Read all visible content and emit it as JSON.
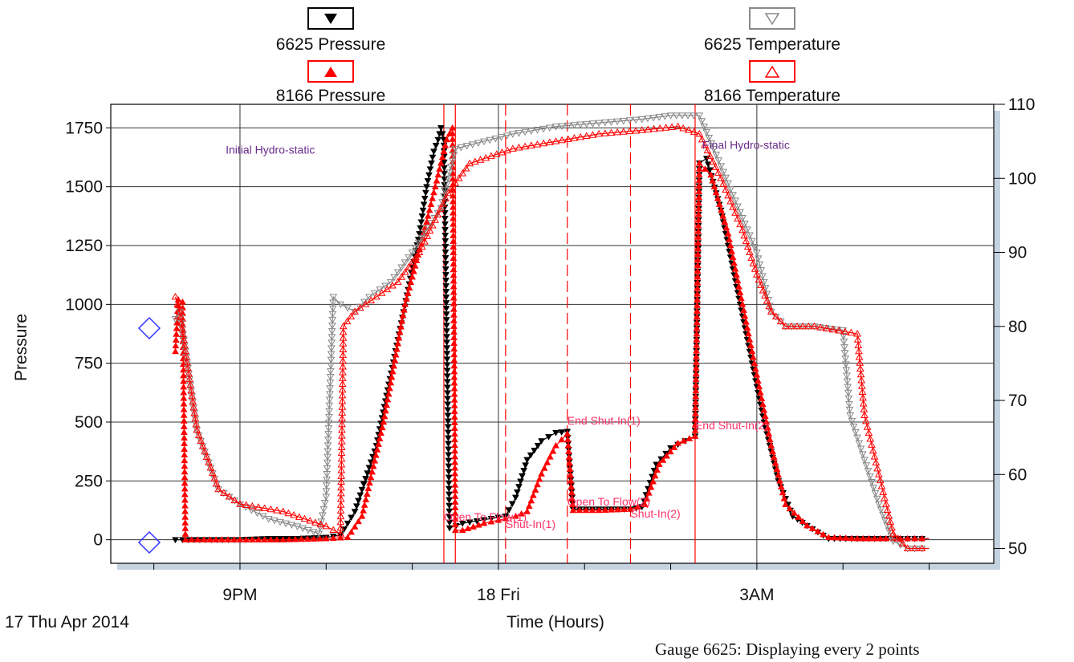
{
  "legend": [
    {
      "key": "p6625",
      "label": "6625 Pressure",
      "color": "#000000",
      "marker": "triangle-down-filled"
    },
    {
      "key": "p8166",
      "label": "8166 Pressure",
      "color": "#ff0000",
      "marker": "triangle-up-filled"
    },
    {
      "key": "t6625",
      "label": "6625 Temperature",
      "color": "#888888",
      "marker": "triangle-down-open"
    },
    {
      "key": "t8166",
      "label": "8166 Temperature",
      "color": "#ff0000",
      "marker": "triangle-up-open"
    }
  ],
  "footer_note": "Gauge 6625: Displaying every 2 points",
  "date_label": "17 Thu Apr 2014",
  "chart_data": {
    "type": "line",
    "xlabel": "Time (Hours)",
    "ylabel": "Pressure",
    "xlim": [
      "2014-04-17 19:30",
      "2014-04-18 05:45"
    ],
    "ylim": [
      -100,
      1850
    ],
    "y2lim": [
      48,
      110
    ],
    "grid": true,
    "x_ticks": [
      {
        "t": "2014-04-17 21:00",
        "label": "9PM"
      },
      {
        "t": "2014-04-18 00:00",
        "label": "18 Fri"
      },
      {
        "t": "2014-04-18 03:00",
        "label": "3AM"
      }
    ],
    "y_ticks": [
      0,
      250,
      500,
      750,
      1000,
      1250,
      1500,
      1750
    ],
    "y2_ticks": [
      50,
      60,
      70,
      80,
      90,
      100,
      110
    ],
    "events": [
      {
        "t": "2014-04-17 23:22",
        "style": "solid",
        "label": "Initial Hydro-static"
      },
      {
        "t": "2014-04-17 23:30",
        "style": "solid",
        "label": ""
      },
      {
        "t": "2014-04-18 00:05",
        "style": "dashed",
        "label": ""
      },
      {
        "t": "2014-04-18 00:48",
        "style": "dashed",
        "label": ""
      },
      {
        "t": "2014-04-18 01:32",
        "style": "dashed",
        "label": ""
      },
      {
        "t": "2014-04-18 02:17",
        "style": "solid",
        "label": ""
      }
    ],
    "annotations": [
      {
        "text": "Initial Hydro-static",
        "t": "2014-04-17 20:50",
        "y": 1640,
        "color": "#6a2c8c"
      },
      {
        "text": "Final Hydro-static",
        "t": "2014-04-18 02:22",
        "y": 1660,
        "color": "#6a2c8c"
      },
      {
        "text": "End Shut-In(1)",
        "t": "2014-04-18 00:48",
        "y": 490,
        "color": "#ff3366"
      },
      {
        "text": "End Shut-In(2)",
        "t": "2014-04-18 02:17",
        "y": 470,
        "color": "#ff3366"
      },
      {
        "text": "Open To Flow(1)",
        "t": "2014-04-17 23:22",
        "y": 80,
        "color": "#ff3366"
      },
      {
        "text": "Shut-In(1)",
        "t": "2014-04-18 00:05",
        "y": 50,
        "color": "#ff3366"
      },
      {
        "text": "Open To Flow(2)",
        "t": "2014-04-18 00:48",
        "y": 145,
        "color": "#ff3366"
      },
      {
        "text": "Shut-In(2)",
        "t": "2014-04-18 01:32",
        "y": 95,
        "color": "#ff3366"
      }
    ],
    "series": [
      {
        "name": "6625 Pressure",
        "axis": "left",
        "color": "#000000",
        "marker": "down-filled",
        "x": [
          "2014-04-17 20:15",
          "2014-04-17 20:20",
          "2014-04-17 20:40",
          "2014-04-17 21:00",
          "2014-04-17 21:20",
          "2014-04-17 21:40",
          "2014-04-17 22:00",
          "2014-04-17 22:10",
          "2014-04-17 22:20",
          "2014-04-17 22:35",
          "2014-04-17 22:50",
          "2014-04-17 23:05",
          "2014-04-17 23:10",
          "2014-04-17 23:15",
          "2014-04-17 23:18",
          "2014-04-17 23:20",
          "2014-04-17 23:22",
          "2014-04-17 23:26",
          "2014-04-17 23:35",
          "2014-04-17 23:50",
          "2014-04-18 00:05",
          "2014-04-18 00:12",
          "2014-04-18 00:20",
          "2014-04-18 00:30",
          "2014-04-18 00:40",
          "2014-04-18 00:48",
          "2014-04-18 00:52",
          "2014-04-18 01:10",
          "2014-04-18 01:32",
          "2014-04-18 01:40",
          "2014-04-18 01:50",
          "2014-04-18 02:00",
          "2014-04-18 02:10",
          "2014-04-18 02:17",
          "2014-04-18 02:20",
          "2014-04-18 02:25",
          "2014-04-18 02:35",
          "2014-04-18 02:45",
          "2014-04-18 02:55",
          "2014-04-18 03:05",
          "2014-04-18 03:15",
          "2014-04-18 03:25",
          "2014-04-18 03:35",
          "2014-04-18 03:50",
          "2014-04-18 04:10",
          "2014-04-18 04:30",
          "2014-04-18 04:45",
          "2014-04-18 05:00"
        ],
        "y": [
          0,
          0,
          0,
          0,
          5,
          5,
          10,
          20,
          120,
          400,
          850,
          1300,
          1500,
          1650,
          1700,
          1750,
          1700,
          50,
          70,
          85,
          100,
          180,
          340,
          420,
          455,
          460,
          130,
          130,
          130,
          140,
          320,
          390,
          420,
          440,
          1600,
          1620,
          1400,
          1100,
          800,
          500,
          250,
          100,
          60,
          5,
          5,
          5,
          5,
          5
        ]
      },
      {
        "name": "8166 Pressure",
        "axis": "left",
        "color": "#ff0000",
        "marker": "up-filled",
        "x": [
          "2014-04-17 20:15",
          "2014-04-17 20:17",
          "2014-04-17 20:20",
          "2014-04-17 20:22",
          "2014-04-17 20:35",
          "2014-04-17 21:00",
          "2014-04-17 21:30",
          "2014-04-17 22:00",
          "2014-04-17 22:15",
          "2014-04-17 22:25",
          "2014-04-17 22:40",
          "2014-04-17 22:55",
          "2014-04-17 23:10",
          "2014-04-17 23:20",
          "2014-04-17 23:24",
          "2014-04-17 23:28",
          "2014-04-17 23:30",
          "2014-04-17 23:35",
          "2014-04-17 23:50",
          "2014-04-18 00:05",
          "2014-04-18 00:12",
          "2014-04-18 00:20",
          "2014-04-18 00:30",
          "2014-04-18 00:40",
          "2014-04-18 00:48",
          "2014-04-18 00:52",
          "2014-04-18 01:10",
          "2014-04-18 01:32",
          "2014-04-18 01:42",
          "2014-04-18 01:52",
          "2014-04-18 02:05",
          "2014-04-18 02:17",
          "2014-04-18 02:20",
          "2014-04-18 02:28",
          "2014-04-18 02:40",
          "2014-04-18 02:50",
          "2014-04-18 03:00",
          "2014-04-18 03:10",
          "2014-04-18 03:20",
          "2014-04-18 03:35",
          "2014-04-18 03:50",
          "2014-04-18 04:10",
          "2014-04-18 04:30",
          "2014-04-18 04:45",
          "2014-04-18 05:00"
        ],
        "y": [
          800,
          1020,
          1010,
          0,
          0,
          0,
          0,
          5,
          10,
          100,
          500,
          1000,
          1350,
          1600,
          1700,
          1750,
          40,
          40,
          70,
          90,
          100,
          120,
          280,
          400,
          450,
          125,
          125,
          130,
          150,
          320,
          410,
          440,
          1600,
          1550,
          1300,
          1000,
          700,
          400,
          150,
          60,
          10,
          5,
          5,
          5,
          5
        ]
      },
      {
        "name": "6625 Temperature",
        "axis": "right",
        "color": "#888888",
        "marker": "down-open",
        "x": [
          "2014-04-17 20:15",
          "2014-04-17 20:18",
          "2014-04-17 20:30",
          "2014-04-17 20:45",
          "2014-04-17 21:00",
          "2014-04-17 21:20",
          "2014-04-17 21:40",
          "2014-04-17 21:55",
          "2014-04-17 22:00",
          "2014-04-17 22:05",
          "2014-04-17 22:10",
          "2014-04-17 22:20",
          "2014-04-17 22:30",
          "2014-04-17 22:45",
          "2014-04-17 23:00",
          "2014-04-17 23:20",
          "2014-04-17 23:30",
          "2014-04-17 23:50",
          "2014-04-18 00:10",
          "2014-04-18 00:40",
          "2014-04-18 01:10",
          "2014-04-18 01:40",
          "2014-04-18 02:00",
          "2014-04-18 02:20",
          "2014-04-18 02:30",
          "2014-04-18 02:45",
          "2014-04-18 03:00",
          "2014-04-18 03:10",
          "2014-04-18 03:20",
          "2014-04-18 03:40",
          "2014-04-18 04:00",
          "2014-04-18 04:05",
          "2014-04-18 04:15",
          "2014-04-18 04:25",
          "2014-04-18 04:35",
          "2014-04-18 04:45",
          "2014-04-18 05:00"
        ],
        "y": [
          81,
          82,
          66,
          58,
          56,
          54,
          53,
          52,
          57,
          84,
          83,
          82,
          84,
          86,
          90,
          96,
          104,
          105,
          106,
          107,
          107.5,
          108,
          108.5,
          108.5,
          104,
          97,
          90,
          82,
          80,
          80,
          79.5,
          68,
          62,
          56,
          51,
          50,
          50
        ]
      },
      {
        "name": "8166 Temperature",
        "axis": "right",
        "color": "#ff0000",
        "marker": "up-open",
        "x": [
          "2014-04-17 20:15",
          "2014-04-17 20:18",
          "2014-04-17 20:30",
          "2014-04-17 20:45",
          "2014-04-17 21:00",
          "2014-04-17 21:30",
          "2014-04-17 22:00",
          "2014-04-17 22:10",
          "2014-04-17 22:12",
          "2014-04-17 22:20",
          "2014-04-17 22:35",
          "2014-04-17 22:50",
          "2014-04-17 23:05",
          "2014-04-17 23:25",
          "2014-04-17 23:40",
          "2014-04-18 00:10",
          "2014-04-18 00:40",
          "2014-04-18 01:10",
          "2014-04-18 01:40",
          "2014-04-18 02:05",
          "2014-04-18 02:20",
          "2014-04-18 02:35",
          "2014-04-18 02:50",
          "2014-04-18 03:00",
          "2014-04-18 03:10",
          "2014-04-18 03:20",
          "2014-04-18 03:40",
          "2014-04-18 04:10",
          "2014-04-18 04:15",
          "2014-04-18 04:25",
          "2014-04-18 04:35",
          "2014-04-18 04:45",
          "2014-04-18 05:00"
        ],
        "y": [
          84,
          82,
          66,
          58,
          56,
          55,
          53,
          52,
          80,
          82,
          84,
          86,
          90,
          98,
          102,
          104,
          105,
          106,
          106.5,
          107,
          106,
          100,
          93,
          87,
          82,
          80,
          80,
          79,
          68,
          60,
          52,
          50,
          50
        ]
      }
    ]
  }
}
